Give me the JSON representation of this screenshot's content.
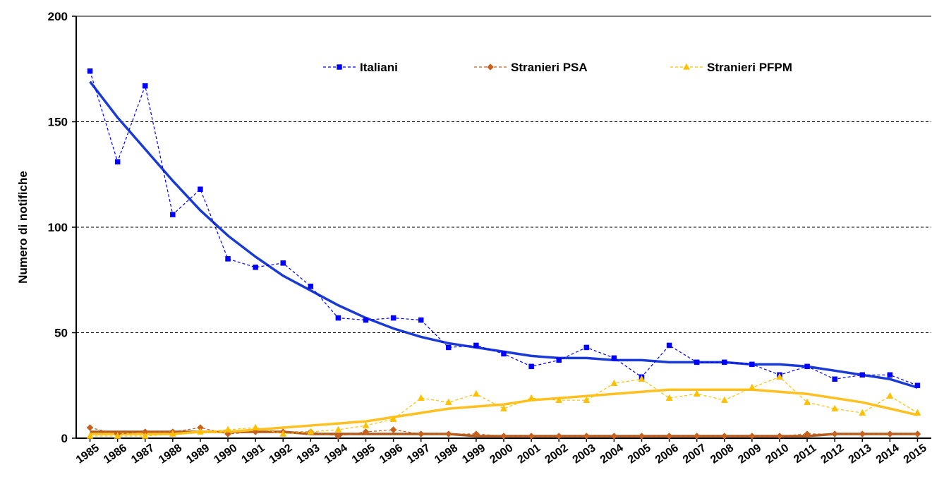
{
  "chart_data": {
    "type": "line",
    "y_label": "Numero di notifiche",
    "categories": [
      "1985",
      "1986",
      "1987",
      "1988",
      "1989",
      "1990",
      "1991",
      "1992",
      "1993",
      "1994",
      "1995",
      "1996",
      "1997",
      "1998",
      "1999",
      "2000",
      "2001",
      "2002",
      "2003",
      "2004",
      "2005",
      "2006",
      "2007",
      "2008",
      "2009",
      "2010",
      "2011",
      "2012",
      "2013",
      "2014",
      "2015"
    ],
    "series": [
      {
        "name": "Italiani",
        "color": "#0000ff",
        "trend_color": "#1a3ad6",
        "marker": "square",
        "values": [
          174,
          131,
          167,
          106,
          118,
          85,
          81,
          83,
          72,
          57,
          56,
          57,
          56,
          43,
          44,
          40,
          34,
          37,
          43,
          38,
          29,
          44,
          36,
          36,
          35,
          30,
          34,
          28,
          30,
          30,
          25
        ],
        "trend": [
          169,
          152,
          137,
          122,
          108,
          96,
          86,
          77,
          70,
          63,
          57,
          52,
          48,
          45,
          43,
          41,
          39,
          38,
          38,
          37,
          37,
          36,
          36,
          36,
          35,
          35,
          34,
          32,
          30,
          28,
          24
        ]
      },
      {
        "name": "Stranieri PSA",
        "color": "#c8601e",
        "trend_color": "#b45a1c",
        "marker": "diamond",
        "values": [
          5,
          2,
          3,
          3,
          5,
          2,
          3,
          3,
          3,
          1,
          3,
          4,
          2,
          2,
          2,
          1,
          1,
          1,
          1,
          1,
          1,
          1,
          1,
          1,
          1,
          1,
          2,
          2,
          2,
          2,
          2
        ],
        "trend": [
          3,
          3,
          3,
          3,
          3,
          3,
          3,
          3,
          2,
          2,
          2,
          2,
          2,
          2,
          1,
          1,
          1,
          1,
          1,
          1,
          1,
          1,
          1,
          1,
          1,
          1,
          1,
          2,
          2,
          2,
          2
        ]
      },
      {
        "name": "Stranieri PFPM",
        "color": "#ffc000",
        "trend_color": "#ffc020",
        "marker": "triangle",
        "values": [
          1,
          1,
          1,
          2,
          3,
          4,
          5,
          2,
          3,
          4,
          6,
          9,
          19,
          17,
          21,
          14,
          19,
          18,
          18,
          26,
          28,
          19,
          21,
          18,
          24,
          29,
          17,
          14,
          12,
          20,
          12
        ],
        "trend": [
          2,
          2,
          2,
          2,
          3,
          3,
          4,
          5,
          6,
          7,
          8,
          10,
          12,
          14,
          15,
          16,
          18,
          19,
          20,
          21,
          22,
          23,
          23,
          23,
          23,
          22,
          21,
          19,
          17,
          14,
          11
        ]
      }
    ],
    "ylim": [
      0,
      200
    ],
    "yticks": [
      0,
      50,
      100,
      150,
      200
    ],
    "grid": true,
    "legend": "top"
  }
}
